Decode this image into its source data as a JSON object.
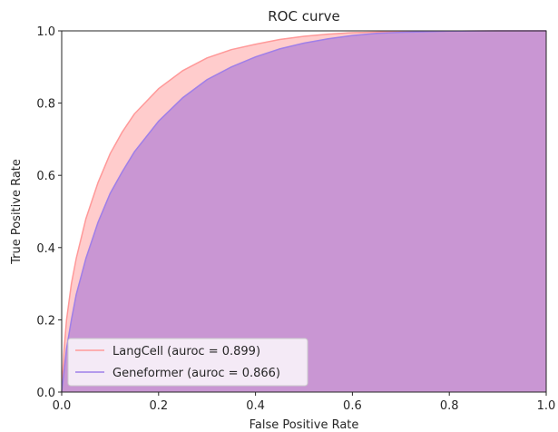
{
  "chart_data": {
    "type": "area",
    "title": "ROC curve",
    "xlabel": "False Positive Rate",
    "ylabel": "True Positive Rate",
    "xlim": [
      0.0,
      1.0
    ],
    "ylim": [
      0.0,
      1.0
    ],
    "x_ticks": [
      "0.0",
      "0.2",
      "0.4",
      "0.6",
      "0.8",
      "1.0"
    ],
    "y_ticks": [
      "0.0",
      "0.2",
      "0.4",
      "0.6",
      "0.8",
      "1.0"
    ],
    "grid": false,
    "legend_position": "lower-left",
    "series": [
      {
        "name": "LangCell (auroc = 0.899)",
        "line_color": "#ff9999",
        "fill_color": "#ff9999",
        "x": [
          0.0,
          0.005,
          0.01,
          0.02,
          0.03,
          0.05,
          0.075,
          0.1,
          0.125,
          0.15,
          0.2,
          0.25,
          0.3,
          0.35,
          0.4,
          0.45,
          0.5,
          0.55,
          0.6,
          0.7,
          0.8,
          0.9,
          1.0
        ],
        "y": [
          0.0,
          0.12,
          0.2,
          0.3,
          0.37,
          0.48,
          0.58,
          0.66,
          0.72,
          0.77,
          0.84,
          0.89,
          0.925,
          0.948,
          0.963,
          0.976,
          0.985,
          0.991,
          0.995,
          0.998,
          0.999,
          1.0,
          1.0
        ]
      },
      {
        "name": "Geneformer (auroc = 0.866)",
        "line_color": "#9f7fe8",
        "fill_color": "#b27fd6",
        "x": [
          0.0,
          0.005,
          0.01,
          0.02,
          0.03,
          0.05,
          0.075,
          0.1,
          0.125,
          0.15,
          0.2,
          0.25,
          0.3,
          0.35,
          0.4,
          0.45,
          0.5,
          0.55,
          0.6,
          0.65,
          0.7,
          0.8,
          0.9,
          1.0
        ],
        "y": [
          0.0,
          0.06,
          0.12,
          0.2,
          0.27,
          0.37,
          0.47,
          0.55,
          0.61,
          0.665,
          0.75,
          0.815,
          0.865,
          0.9,
          0.928,
          0.95,
          0.966,
          0.978,
          0.987,
          0.993,
          0.996,
          0.999,
          1.0,
          1.0
        ]
      }
    ]
  }
}
